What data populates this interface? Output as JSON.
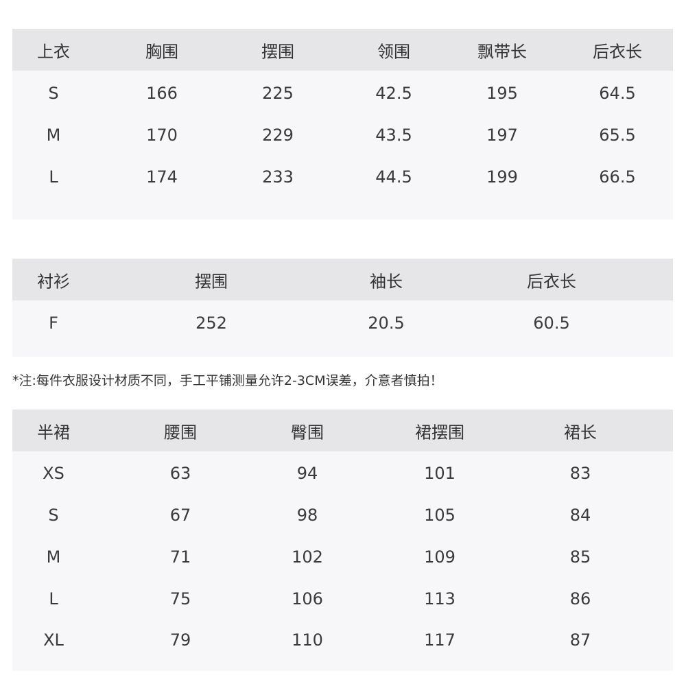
{
  "tables": [
    {
      "headers": [
        "上衣",
        "胸围",
        "摆围",
        "领围",
        "飘带长",
        "后衣长"
      ],
      "rows": [
        [
          "S",
          "166",
          "225",
          "42.5",
          "195",
          "64.5"
        ],
        [
          "M",
          "170",
          "229",
          "43.5",
          "197",
          "65.5"
        ],
        [
          "L",
          "174",
          "233",
          "44.5",
          "199",
          "66.5"
        ]
      ]
    },
    {
      "headers": [
        "衬衫",
        "摆围",
        "袖长",
        "后衣长"
      ],
      "rows": [
        [
          "F",
          "252",
          "20.5",
          "60.5"
        ]
      ]
    },
    {
      "headers": [
        "半裙",
        "腰围",
        "臀围",
        "裙摆围",
        "裙长"
      ],
      "rows": [
        [
          "XS",
          "63",
          "94",
          "101",
          "83"
        ],
        [
          "S",
          "67",
          "98",
          "105",
          "84"
        ],
        [
          "M",
          "71",
          "102",
          "109",
          "85"
        ],
        [
          "L",
          "75",
          "106",
          "113",
          "86"
        ],
        [
          "XL",
          "79",
          "110",
          "117",
          "87"
        ]
      ]
    }
  ],
  "note": "*注:每件衣服设计材质不同，手工平铺测量允许2-3CM误差，介意者慎拍！",
  "colors": {
    "header_bg": "#e6e6e8",
    "body_bg": "#f7f7f9",
    "text": "#333333"
  }
}
